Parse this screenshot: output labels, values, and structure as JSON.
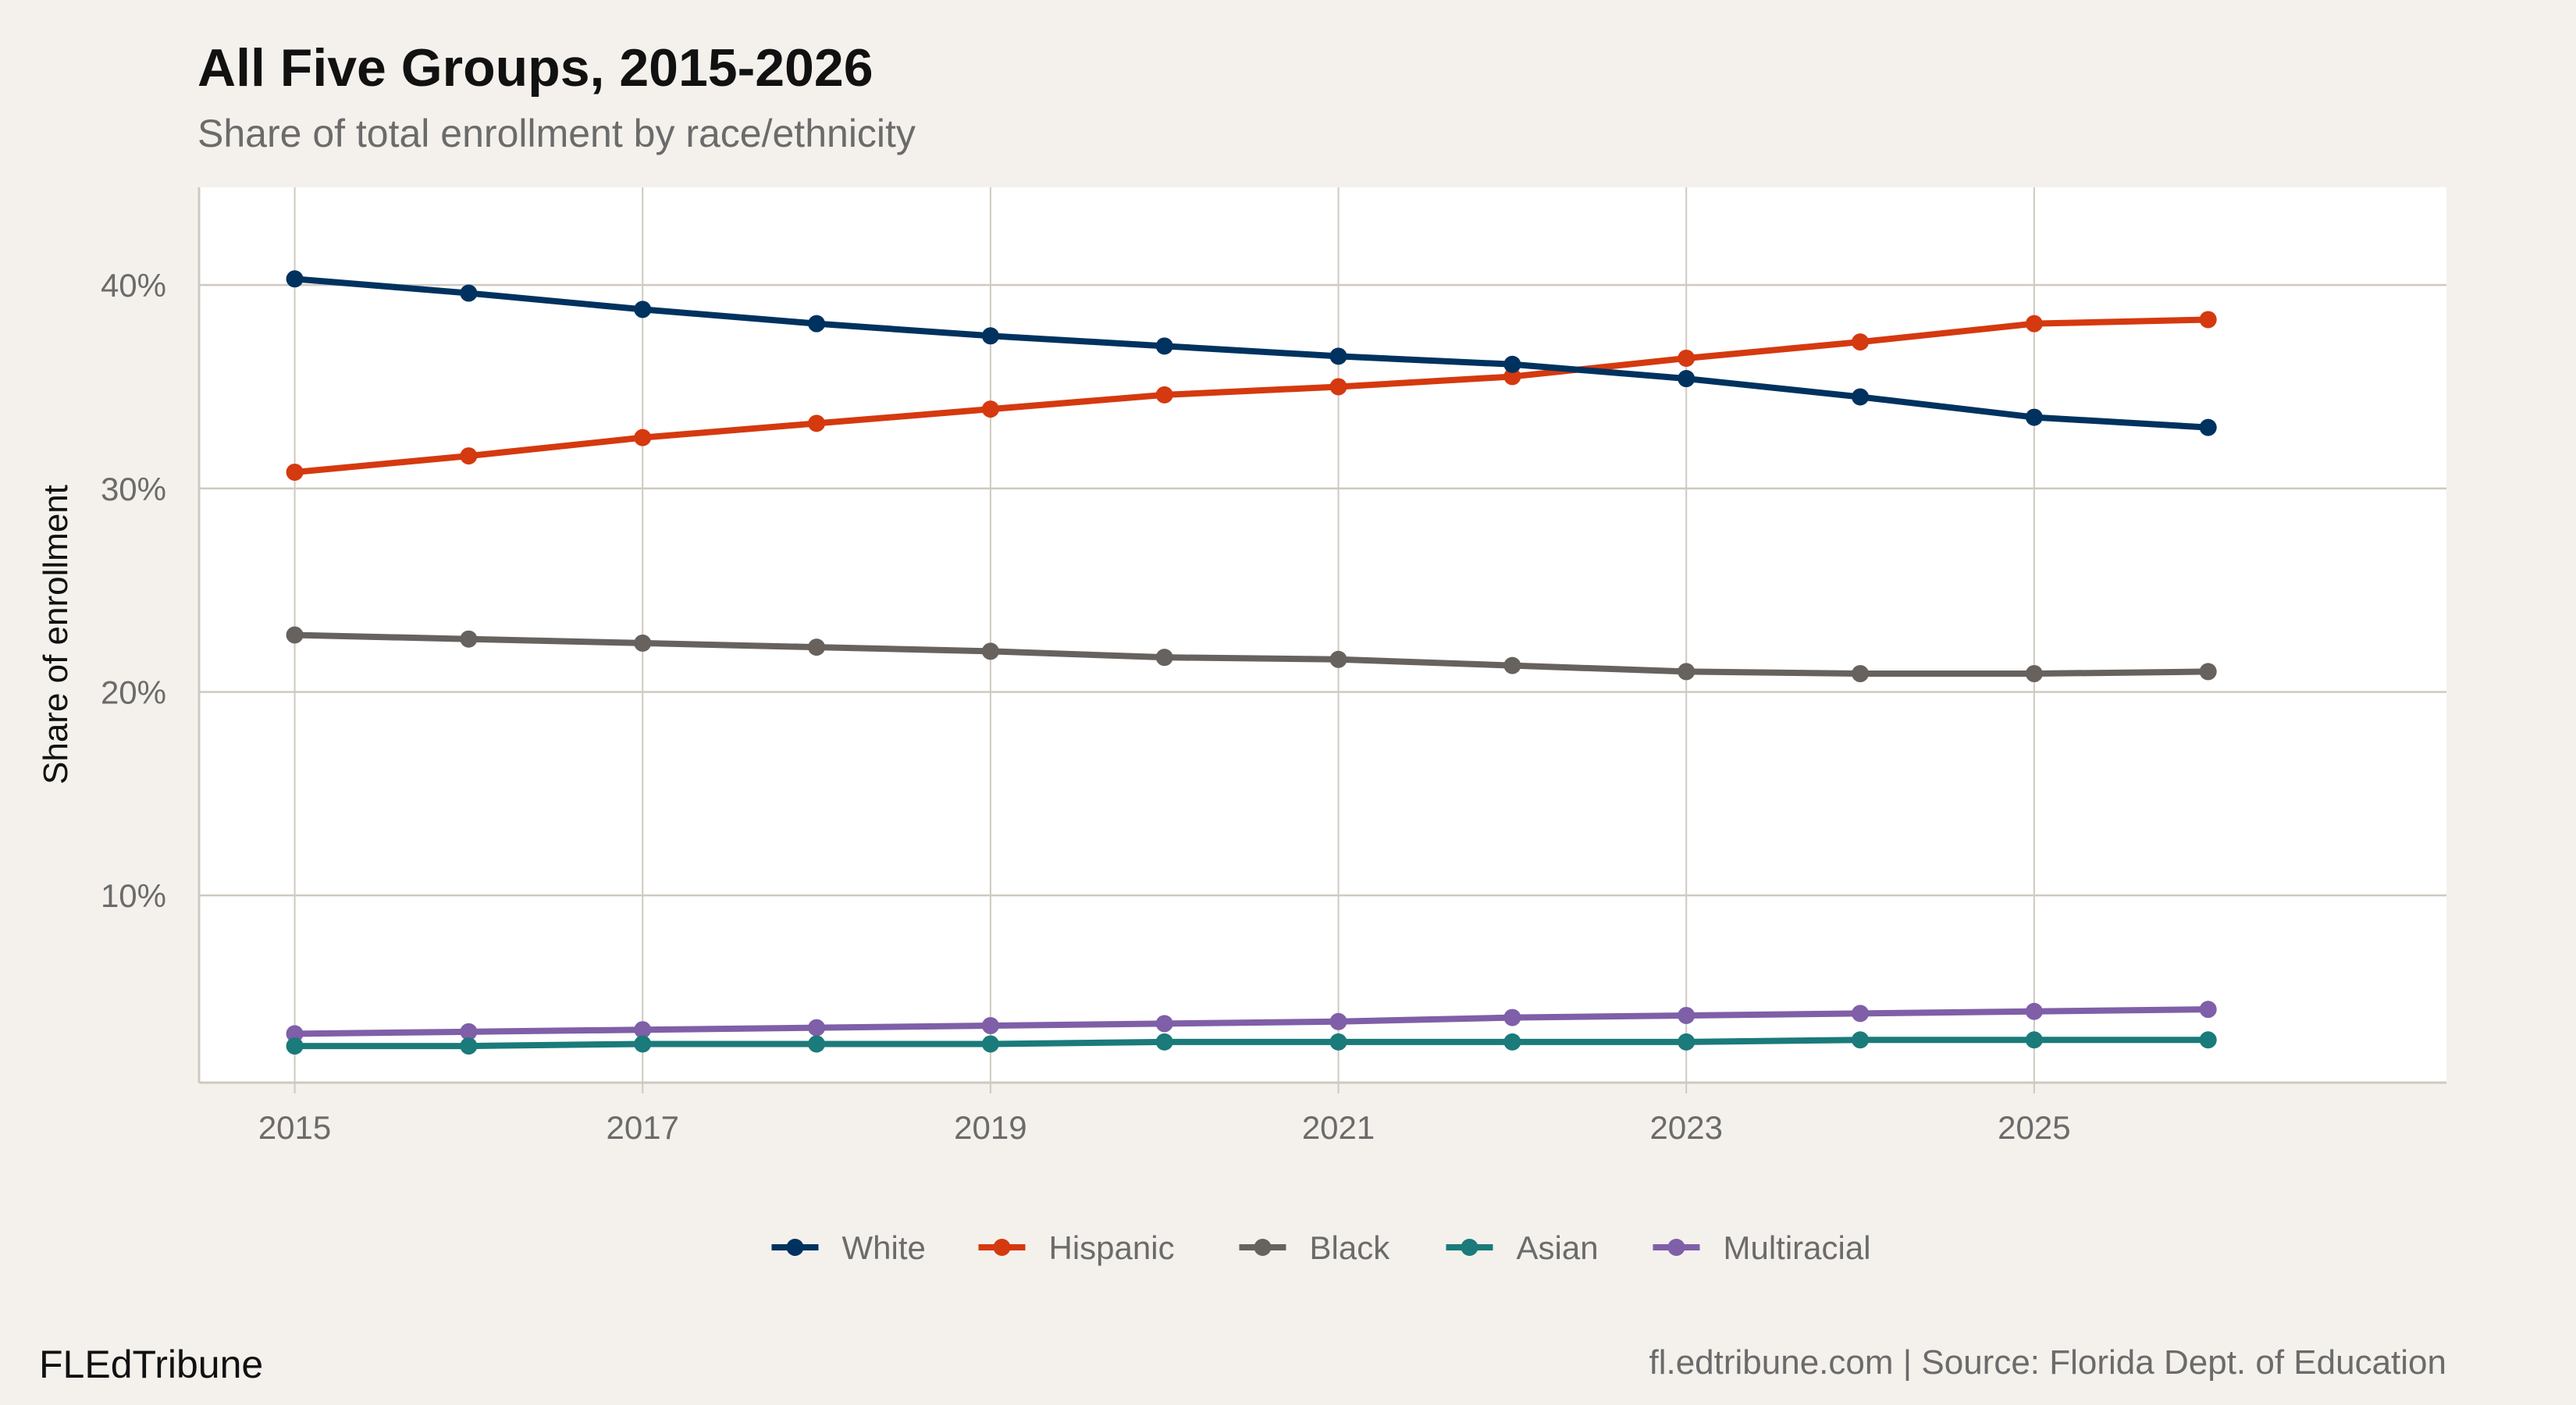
{
  "chart_data": {
    "type": "line",
    "title": "All Five Groups, 2015-2026",
    "subtitle": "Share of total enrollment by race/ethnicity",
    "xlabel": "",
    "ylabel": "Share of enrollment",
    "x": [
      2015,
      2016,
      2017,
      2018,
      2019,
      2020,
      2021,
      2022,
      2023,
      2024,
      2025,
      2026
    ],
    "x_ticks": [
      2015,
      2017,
      2019,
      2021,
      2023,
      2025
    ],
    "x_tick_labels": [
      "2015",
      "2017",
      "2019",
      "2021",
      "2023",
      "2025"
    ],
    "y_ticks": [
      10,
      20,
      30,
      40
    ],
    "y_tick_labels": [
      "10%",
      "20%",
      "30%",
      "40%"
    ],
    "xlim": [
      2014.45,
      2027.37
    ],
    "ylim": [
      0.8,
      44.8
    ],
    "grid": true,
    "legend_position": "bottom",
    "series": [
      {
        "name": "White",
        "color": "#00325f",
        "values": [
          40.3,
          39.6,
          38.8,
          38.1,
          37.5,
          37.0,
          36.5,
          36.1,
          35.4,
          34.5,
          33.5,
          33.0
        ]
      },
      {
        "name": "Hispanic",
        "color": "#d5390f",
        "values": [
          30.8,
          31.6,
          32.5,
          33.2,
          33.9,
          34.6,
          35.0,
          35.5,
          36.4,
          37.2,
          38.1,
          38.3
        ]
      },
      {
        "name": "Black",
        "color": "#67625d",
        "values": [
          22.8,
          22.6,
          22.4,
          22.2,
          22.0,
          21.7,
          21.6,
          21.3,
          21.0,
          20.9,
          20.9,
          21.0
        ]
      },
      {
        "name": "Asian",
        "color": "#1b7a7a",
        "values": [
          2.6,
          2.6,
          2.7,
          2.7,
          2.7,
          2.8,
          2.8,
          2.8,
          2.8,
          2.9,
          2.9,
          2.9
        ]
      },
      {
        "name": "Multiracial",
        "color": "#7f5fa8",
        "values": [
          3.2,
          3.3,
          3.4,
          3.5,
          3.6,
          3.7,
          3.8,
          4.0,
          4.1,
          4.2,
          4.3,
          4.4
        ]
      }
    ]
  },
  "footer": {
    "brand": "FLEdTribune",
    "source": "fl.edtribune.com | Source: Florida Dept. of Education"
  },
  "colors": {
    "background": "#f4f1ec",
    "panel": "#ffffff",
    "grid": "#cfc9c0"
  }
}
